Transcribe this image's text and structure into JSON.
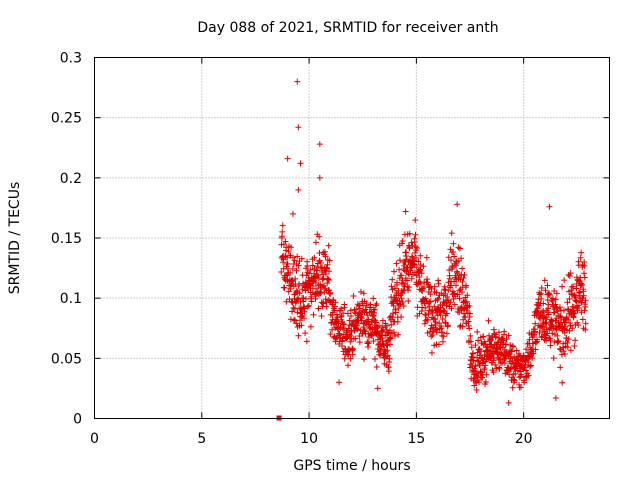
{
  "chart_data": {
    "type": "scatter",
    "title": "Day 088 of 2021, SRMTID for receiver anth",
    "xlabel": "GPS time / hours",
    "ylabel": "SRMTID / TECUs",
    "xlim": [
      0,
      24
    ],
    "ylim": [
      0,
      0.3
    ],
    "xticks": [
      0,
      5,
      10,
      15,
      20
    ],
    "xtick_labels": [
      "0",
      "5",
      "10",
      "15",
      "20"
    ],
    "yticks": [
      0,
      0.05,
      0.1,
      0.15,
      0.2,
      0.25,
      0.3
    ],
    "ytick_labels": [
      "0",
      "0.05",
      "0.1",
      "0.15",
      "0.2",
      "0.25",
      "0.3"
    ],
    "grid": true,
    "marker": "+",
    "color": "#e00000",
    "outlier_points": [
      [
        8.6,
        0.0
      ],
      [
        9.45,
        0.28
      ],
      [
        9.5,
        0.242
      ],
      [
        10.5,
        0.228
      ],
      [
        9.0,
        0.216
      ],
      [
        9.6,
        0.212
      ],
      [
        10.5,
        0.2
      ],
      [
        9.5,
        0.19
      ],
      [
        21.2,
        0.176
      ],
      [
        16.9,
        0.178
      ],
      [
        9.25,
        0.17
      ],
      [
        14.5,
        0.172
      ],
      [
        13.2,
        0.025
      ],
      [
        11.4,
        0.03
      ],
      [
        19.3,
        0.013
      ],
      [
        21.5,
        0.017
      ]
    ],
    "segments": [
      {
        "x0": 8.7,
        "x1": 9.8,
        "base0": 0.125,
        "base1": 0.105,
        "spread": 0.03,
        "n": 120
      },
      {
        "x0": 9.8,
        "x1": 11.0,
        "base0": 0.115,
        "base1": 0.1,
        "spread": 0.03,
        "n": 130
      },
      {
        "x0": 11.0,
        "x1": 12.5,
        "base0": 0.085,
        "base1": 0.075,
        "spread": 0.022,
        "n": 150
      },
      {
        "x0": 12.5,
        "x1": 13.8,
        "base0": 0.07,
        "base1": 0.072,
        "spread": 0.022,
        "n": 140
      },
      {
        "x0": 13.8,
        "x1": 15.0,
        "base0": 0.1,
        "base1": 0.12,
        "spread": 0.03,
        "n": 130
      },
      {
        "x0": 15.0,
        "x1": 16.5,
        "base0": 0.11,
        "base1": 0.085,
        "spread": 0.03,
        "n": 150
      },
      {
        "x0": 16.5,
        "x1": 17.5,
        "base0": 0.11,
        "base1": 0.09,
        "spread": 0.03,
        "n": 100
      },
      {
        "x0": 17.5,
        "x1": 19.0,
        "base0": 0.06,
        "base1": 0.045,
        "spread": 0.018,
        "n": 160
      },
      {
        "x0": 19.0,
        "x1": 20.5,
        "base0": 0.05,
        "base1": 0.055,
        "spread": 0.018,
        "n": 150
      },
      {
        "x0": 20.5,
        "x1": 21.7,
        "base0": 0.07,
        "base1": 0.09,
        "spread": 0.025,
        "n": 130
      },
      {
        "x0": 21.7,
        "x1": 22.9,
        "base0": 0.085,
        "base1": 0.1,
        "spread": 0.032,
        "n": 130
      }
    ]
  }
}
